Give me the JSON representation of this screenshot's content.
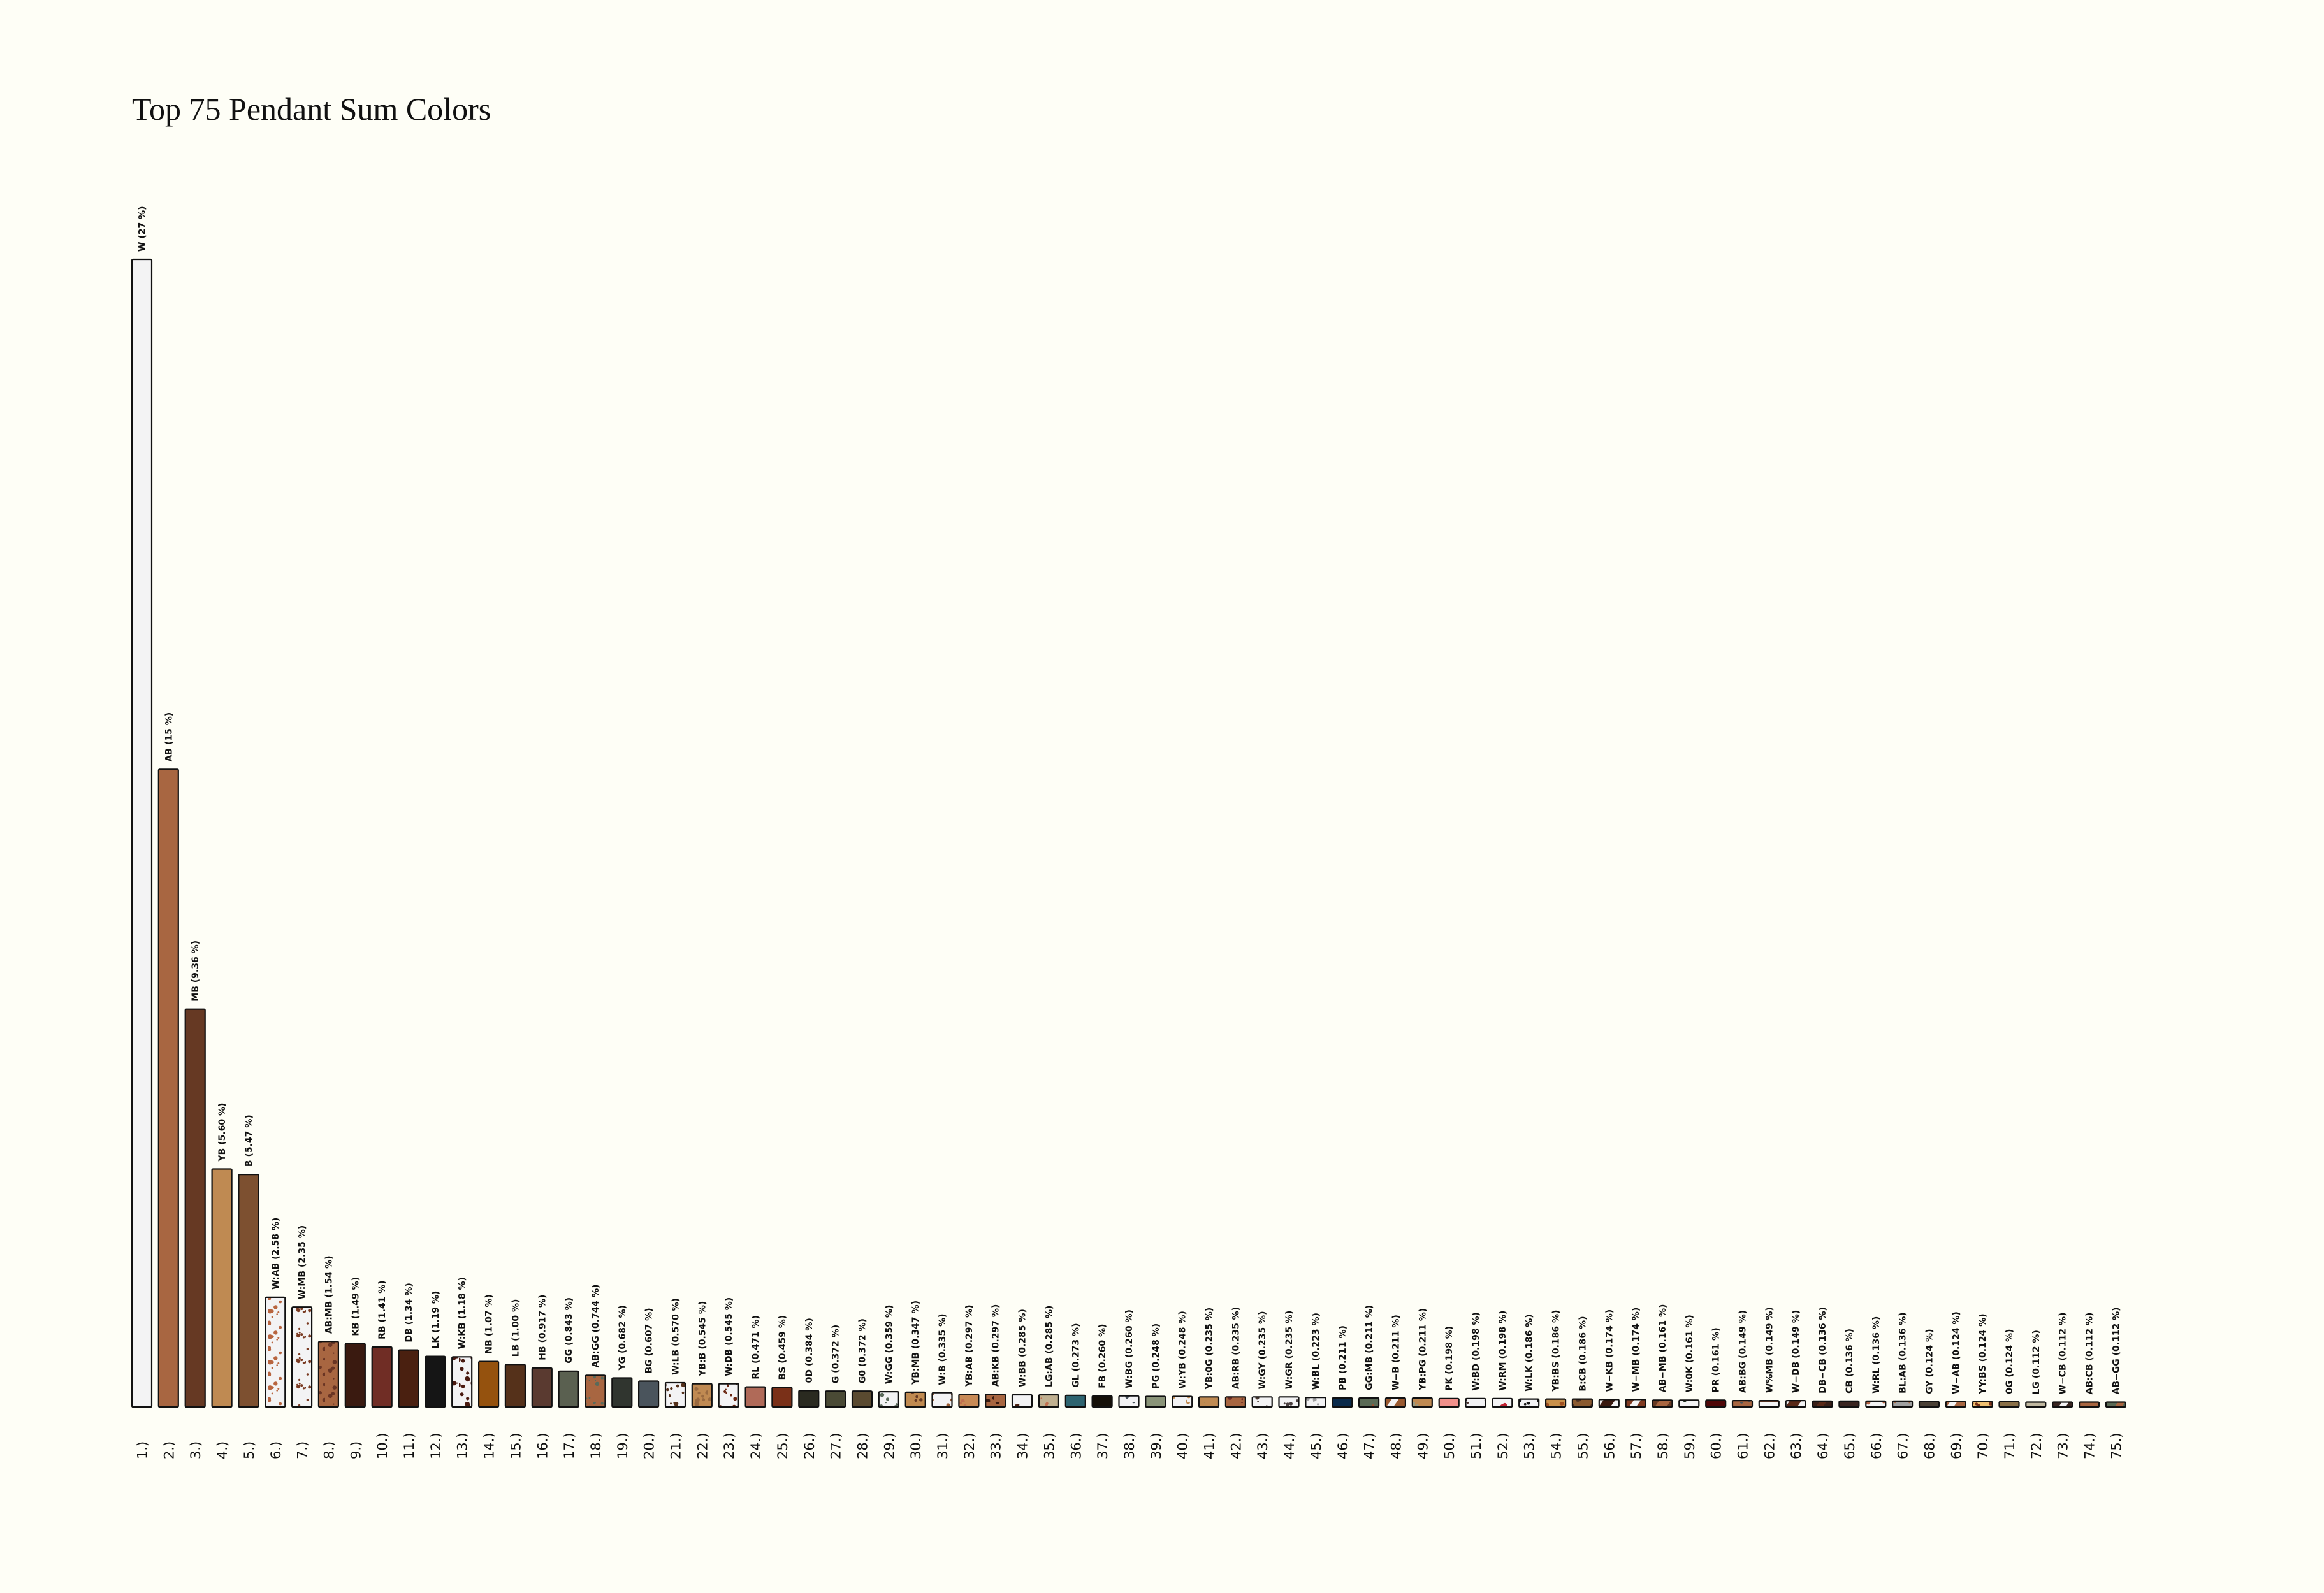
{
  "chart_data": {
    "type": "bar",
    "title": "Top 75 Pendant Sum Colors",
    "xlabel": "",
    "ylabel": "",
    "unit": "%",
    "ylim": [
      0,
      27
    ],
    "grid": false,
    "legend": "none",
    "bars": [
      {
        "rank": "1.)",
        "label": "W (27 %)",
        "value": 27,
        "color": "#f3f3f4",
        "pattern": "solid"
      },
      {
        "rank": "2.)",
        "label": "AB (15 %)",
        "value": 15,
        "color": "#a86641",
        "pattern": "solid"
      },
      {
        "rank": "3.)",
        "label": "MB (9.36 %)",
        "value": 9.36,
        "color": "#663923",
        "pattern": "solid"
      },
      {
        "rank": "4.)",
        "label": "YB (5.60 %)",
        "value": 5.6,
        "color": "#bf8a52",
        "pattern": "solid"
      },
      {
        "rank": "5.)",
        "label": "B (5.47 %)",
        "value": 5.47,
        "color": "#7d5030",
        "pattern": "solid"
      },
      {
        "rank": "6.)",
        "label": "W:AB (2.58 %)",
        "value": 2.58,
        "color": "#f3f3f4",
        "color2": "#b8653f",
        "pattern": "mottled"
      },
      {
        "rank": "7.)",
        "label": "W:MB (2.35 %)",
        "value": 2.35,
        "color": "#f3f3f4",
        "color2": "#7a3a22",
        "pattern": "mottled"
      },
      {
        "rank": "8.)",
        "label": "AB:MB (1.54 %)",
        "value": 1.54,
        "color": "#a86641",
        "color2": "#6a3524",
        "pattern": "mottled"
      },
      {
        "rank": "9.)",
        "label": "KB (1.49 %)",
        "value": 1.49,
        "color": "#3a1a10",
        "pattern": "solid"
      },
      {
        "rank": "10.)",
        "label": "RB (1.41 %)",
        "value": 1.41,
        "color": "#702d25",
        "pattern": "solid"
      },
      {
        "rank": "11.)",
        "label": "DB (1.34 %)",
        "value": 1.34,
        "color": "#4a2010",
        "pattern": "solid"
      },
      {
        "rank": "12.)",
        "label": "LK (1.19 %)",
        "value": 1.19,
        "color": "#151515",
        "pattern": "solid"
      },
      {
        "rank": "13.)",
        "label": "W:KB (1.18 %)",
        "value": 1.18,
        "color": "#f3f3f4",
        "color2": "#4a1a10",
        "pattern": "mottled"
      },
      {
        "rank": "14.)",
        "label": "NB (1.07 %)",
        "value": 1.07,
        "color": "#95520e",
        "pattern": "solid"
      },
      {
        "rank": "15.)",
        "label": "LB (1.00 %)",
        "value": 1.0,
        "color": "#55311a",
        "pattern": "solid"
      },
      {
        "rank": "16.)",
        "label": "HB (0.917 %)",
        "value": 0.917,
        "color": "#5a3a30",
        "pattern": "solid"
      },
      {
        "rank": "17.)",
        "label": "GG (0.843 %)",
        "value": 0.843,
        "color": "#5a6050",
        "pattern": "solid"
      },
      {
        "rank": "18.)",
        "label": "AB:GG (0.744 %)",
        "value": 0.744,
        "color": "#a86641",
        "color2": "#5a6a5a",
        "pattern": "mottled"
      },
      {
        "rank": "19.)",
        "label": "YG (0.682 %)",
        "value": 0.682,
        "color": "#30352f",
        "pattern": "solid"
      },
      {
        "rank": "20.)",
        "label": "BG (0.607 %)",
        "value": 0.607,
        "color": "#4a545c",
        "pattern": "solid"
      },
      {
        "rank": "21.)",
        "label": "W:LB (0.570 %)",
        "value": 0.57,
        "color": "#f3f3f4",
        "color2": "#55311a",
        "pattern": "mottled"
      },
      {
        "rank": "22.)",
        "label": "YB:B (0.545 %)",
        "value": 0.545,
        "color": "#c08a52",
        "color2": "#9a6a40",
        "pattern": "mottled"
      },
      {
        "rank": "23.)",
        "label": "W:DB (0.545 %)",
        "value": 0.545,
        "color": "#f3f3f4",
        "color2": "#6a2510",
        "pattern": "mottled"
      },
      {
        "rank": "24.)",
        "label": "RL (0.471 %)",
        "value": 0.471,
        "color": "#b06a58",
        "pattern": "solid"
      },
      {
        "rank": "25.)",
        "label": "BS (0.459 %)",
        "value": 0.459,
        "color": "#7a3018",
        "pattern": "solid"
      },
      {
        "rank": "26.)",
        "label": "0D (0.384 %)",
        "value": 0.384,
        "color": "#2a2a20",
        "pattern": "solid"
      },
      {
        "rank": "27.)",
        "label": "G (0.372 %)",
        "value": 0.372,
        "color": "#4a4a35",
        "pattern": "solid"
      },
      {
        "rank": "28.)",
        "label": "G0 (0.372 %)",
        "value": 0.372,
        "color": "#5a4a30",
        "pattern": "solid"
      },
      {
        "rank": "29.)",
        "label": "W:GG (0.359 %)",
        "value": 0.359,
        "color": "#f3f3f4",
        "color2": "#5a6a5a",
        "pattern": "mottled"
      },
      {
        "rank": "30.)",
        "label": "YB:MB (0.347 %)",
        "value": 0.347,
        "color": "#c08a50",
        "color2": "#663923",
        "pattern": "mottled"
      },
      {
        "rank": "31.)",
        "label": "W:B (0.335 %)",
        "value": 0.335,
        "color": "#f3f3f4",
        "color2": "#9a5a30",
        "pattern": "mottled"
      },
      {
        "rank": "32.)",
        "label": "YB:AB (0.297 %)",
        "value": 0.297,
        "color": "#c88a55",
        "color2": "#c07050",
        "pattern": "mottled"
      },
      {
        "rank": "33.)",
        "label": "AB:KB (0.297 %)",
        "value": 0.297,
        "color": "#a86641",
        "color2": "#3a1a10",
        "pattern": "mottled"
      },
      {
        "rank": "34.)",
        "label": "W:BB (0.285 %)",
        "value": 0.285,
        "color": "#f3f3f4",
        "color2": "#4a2010",
        "pattern": "mottled"
      },
      {
        "rank": "35.)",
        "label": "LG:AB (0.285 %)",
        "value": 0.285,
        "color": "#c0b090",
        "color2": "#c07050",
        "pattern": "mottled"
      },
      {
        "rank": "36.)",
        "label": "GL (0.273 %)",
        "value": 0.273,
        "color": "#2e6470",
        "pattern": "solid"
      },
      {
        "rank": "37.)",
        "label": "FB (0.260 %)",
        "value": 0.26,
        "color": "#151008",
        "pattern": "solid"
      },
      {
        "rank": "38.)",
        "label": "W:BG (0.260 %)",
        "value": 0.26,
        "color": "#f3f3f4",
        "color2": "#4a545c",
        "pattern": "mottled"
      },
      {
        "rank": "39.)",
        "label": "PG (0.248 %)",
        "value": 0.248,
        "color": "#8a9478",
        "pattern": "solid"
      },
      {
        "rank": "40.)",
        "label": "W:YB (0.248 %)",
        "value": 0.248,
        "color": "#f3f3f4",
        "color2": "#c08a50",
        "pattern": "mottled"
      },
      {
        "rank": "41.)",
        "label": "YB:0G (0.235 %)",
        "value": 0.235,
        "color": "#bf8a52",
        "color2": "#9a8a50",
        "pattern": "mottled"
      },
      {
        "rank": "42.)",
        "label": "AB:RB (0.235 %)",
        "value": 0.235,
        "color": "#a86641",
        "color2": "#702d25",
        "pattern": "mottled"
      },
      {
        "rank": "43.)",
        "label": "W:GY (0.235 %)",
        "value": 0.235,
        "color": "#f3f3f4",
        "color2": "#4a3a30",
        "pattern": "mottled"
      },
      {
        "rank": "44.)",
        "label": "W:GR (0.235 %)",
        "value": 0.235,
        "color": "#f3f3f4",
        "color2": "#4a4040",
        "pattern": "mottled"
      },
      {
        "rank": "45.)",
        "label": "W:BL (0.223 %)",
        "value": 0.223,
        "color": "#f3f3f4",
        "color2": "#a0a0a0",
        "pattern": "mottled"
      },
      {
        "rank": "46.)",
        "label": "PB (0.211 %)",
        "value": 0.211,
        "color": "#0a2a4a",
        "pattern": "solid"
      },
      {
        "rank": "47.)",
        "label": "GG:MB (0.211 %)",
        "value": 0.211,
        "color": "#5a6a55",
        "color2": "#a05030",
        "pattern": "mottled"
      },
      {
        "rank": "48.)",
        "label": "W−B (0.211 %)",
        "value": 0.211,
        "color": "#9a5a30",
        "color2": "#f3f3f4",
        "pattern": "striped"
      },
      {
        "rank": "49.)",
        "label": "YB:PG (0.211 %)",
        "value": 0.211,
        "color": "#bf8a52",
        "color2": "#9a9a80",
        "pattern": "mottled"
      },
      {
        "rank": "50.)",
        "label": "PK (0.198 %)",
        "value": 0.198,
        "color": "#f0908a",
        "pattern": "solid"
      },
      {
        "rank": "51.)",
        "label": "W:BD (0.198 %)",
        "value": 0.198,
        "color": "#f3f3f4",
        "color2": "#4a3028",
        "pattern": "mottled"
      },
      {
        "rank": "52.)",
        "label": "W:RM (0.198 %)",
        "value": 0.198,
        "color": "#f3f3f4",
        "color2": "#c02030",
        "pattern": "mottled"
      },
      {
        "rank": "53.)",
        "label": "W:LK (0.186 %)",
        "value": 0.186,
        "color": "#f3f3f4",
        "color2": "#151515",
        "pattern": "mottled"
      },
      {
        "rank": "54.)",
        "label": "YB:BS (0.186 %)",
        "value": 0.186,
        "color": "#c8904a",
        "color2": "#a05020",
        "pattern": "mottled"
      },
      {
        "rank": "55.)",
        "label": "B:CB (0.186 %)",
        "value": 0.186,
        "color": "#8a5a30",
        "color2": "#4a3020",
        "pattern": "mottled"
      },
      {
        "rank": "56.)",
        "label": "W−KB (0.174 %)",
        "value": 0.174,
        "color": "#3a1a10",
        "color2": "#f3f3f4",
        "pattern": "striped"
      },
      {
        "rank": "57.)",
        "label": "W−MB (0.174 %)",
        "value": 0.174,
        "color": "#803a20",
        "color2": "#f3f3f4",
        "pattern": "striped"
      },
      {
        "rank": "58.)",
        "label": "AB−MB (0.161 %)",
        "value": 0.161,
        "color": "#a86641",
        "color2": "#663923",
        "pattern": "striped"
      },
      {
        "rank": "59.)",
        "label": "W:0K (0.161 %)",
        "value": 0.161,
        "color": "#f3f3f4",
        "color2": "#1a2a1a",
        "pattern": "mottled"
      },
      {
        "rank": "60.)",
        "label": "PR (0.161 %)",
        "value": 0.161,
        "color": "#500808",
        "pattern": "solid"
      },
      {
        "rank": "61.)",
        "label": "AB:BG (0.149 %)",
        "value": 0.149,
        "color": "#a86641",
        "color2": "#4a545c",
        "pattern": "mottled"
      },
      {
        "rank": "62.)",
        "label": "W%MB (0.149 %)",
        "value": 0.149,
        "color": "#f3f3f4",
        "color2": "#663923",
        "pattern": "banded"
      },
      {
        "rank": "63.)",
        "label": "W−DB (0.149 %)",
        "value": 0.149,
        "color": "#5a2a18",
        "color2": "#f3f3f4",
        "pattern": "striped"
      },
      {
        "rank": "64.)",
        "label": "DB−CB (0.136 %)",
        "value": 0.136,
        "color": "#3a2018",
        "color2": "#5a2a18",
        "pattern": "striped"
      },
      {
        "rank": "65.)",
        "label": "CB (0.136 %)",
        "value": 0.136,
        "color": "#3a2520",
        "pattern": "solid"
      },
      {
        "rank": "66.)",
        "label": "W:RL (0.136 %)",
        "value": 0.136,
        "color": "#f3f3f4",
        "color2": "#b06040",
        "pattern": "mottled"
      },
      {
        "rank": "67.)",
        "label": "BL:AB (0.136 %)",
        "value": 0.136,
        "color": "#a0a0a0",
        "color2": "#a86641",
        "pattern": "mottled"
      },
      {
        "rank": "68.)",
        "label": "GY (0.124 %)",
        "value": 0.124,
        "color": "#4a4035",
        "pattern": "solid"
      },
      {
        "rank": "69.)",
        "label": "W−AB (0.124 %)",
        "value": 0.124,
        "color": "#a86641",
        "color2": "#f3f3f4",
        "pattern": "striped"
      },
      {
        "rank": "70.)",
        "label": "YY:BS (0.124 %)",
        "value": 0.124,
        "color": "#f0c070",
        "color2": "#7a3018",
        "pattern": "mottled"
      },
      {
        "rank": "71.)",
        "label": "0G (0.124 %)",
        "value": 0.124,
        "color": "#8a7048",
        "pattern": "solid"
      },
      {
        "rank": "72.)",
        "label": "LG (0.112 %)",
        "value": 0.112,
        "color": "#c0b8a0",
        "pattern": "solid"
      },
      {
        "rank": "73.)",
        "label": "W−CB (0.112 %)",
        "value": 0.112,
        "color": "#3a2520",
        "color2": "#f3f3f4",
        "pattern": "striped"
      },
      {
        "rank": "74.)",
        "label": "AB:CB (0.112 %)",
        "value": 0.112,
        "color": "#a86641",
        "color2": "#3a2520",
        "pattern": "mottled"
      },
      {
        "rank": "75.)",
        "label": "AB−GG (0.112 %)",
        "value": 0.112,
        "color": "#5a6a55",
        "color2": "#a86641",
        "pattern": "striped"
      }
    ]
  }
}
